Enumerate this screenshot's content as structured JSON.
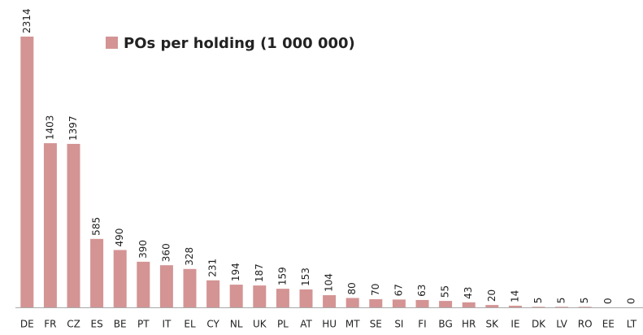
{
  "chart_data": {
    "type": "bar",
    "legend": "POs per holding (1 000 000)",
    "categories": [
      "DE",
      "FR",
      "CZ",
      "ES",
      "BE",
      "PT",
      "IT",
      "EL",
      "CY",
      "NL",
      "UK",
      "PL",
      "AT",
      "HU",
      "MT",
      "SE",
      "SI",
      "FI",
      "BG",
      "HR",
      "SK",
      "IE",
      "DK",
      "LV",
      "RO",
      "EE",
      "LT"
    ],
    "values": [
      2314,
      1403,
      1397,
      585,
      490,
      390,
      360,
      328,
      231,
      194,
      187,
      159,
      153,
      104,
      80,
      70,
      67,
      63,
      55,
      43,
      20,
      14,
      5,
      5,
      5,
      0,
      0
    ],
    "color": "#d49494"
  }
}
